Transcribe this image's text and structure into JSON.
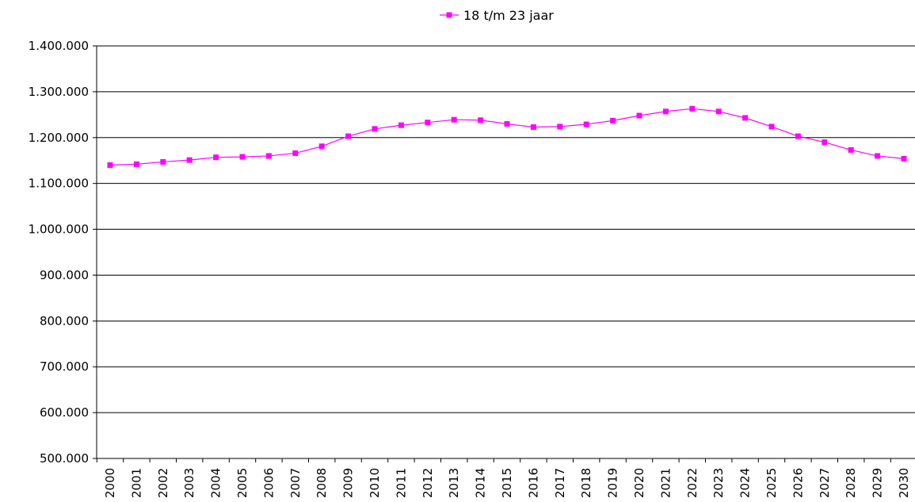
{
  "chart_data": {
    "type": "line",
    "title": "",
    "xlabel": "",
    "ylabel": "",
    "x": [
      "2000",
      "2001",
      "2002",
      "2003",
      "2004",
      "2005",
      "2006",
      "2007",
      "2008",
      "2009",
      "2010",
      "2011",
      "2012",
      "2013",
      "2014",
      "2015",
      "2016",
      "2017",
      "2018",
      "2019",
      "2020",
      "2021",
      "2022",
      "2023",
      "2024",
      "2025",
      "2026",
      "2027",
      "2028",
      "2029",
      "2030"
    ],
    "series": [
      {
        "name": "18 t/m 23 jaar",
        "color": "#ff00ff",
        "marker": "square",
        "values": [
          1140000,
          1142000,
          1147000,
          1151000,
          1157000,
          1158000,
          1160000,
          1166000,
          1181000,
          1203000,
          1219000,
          1227000,
          1233000,
          1239000,
          1238000,
          1230000,
          1223000,
          1224000,
          1229000,
          1237000,
          1248000,
          1257000,
          1263000,
          1257000,
          1243000,
          1224000,
          1203000,
          1190000,
          1173000,
          1160000,
          1154000
        ]
      }
    ],
    "ylim": [
      500000,
      1400000
    ],
    "yticks": [
      500000,
      600000,
      700000,
      800000,
      900000,
      1000000,
      1100000,
      1200000,
      1300000,
      1400000
    ],
    "ytick_labels": [
      "500.000",
      "600.000",
      "700.000",
      "800.000",
      "900.000",
      "1.000.000",
      "1.100.000",
      "1.200.000",
      "1.300.000",
      "1.400.000"
    ],
    "grid": true,
    "legend_position": "top-center"
  }
}
